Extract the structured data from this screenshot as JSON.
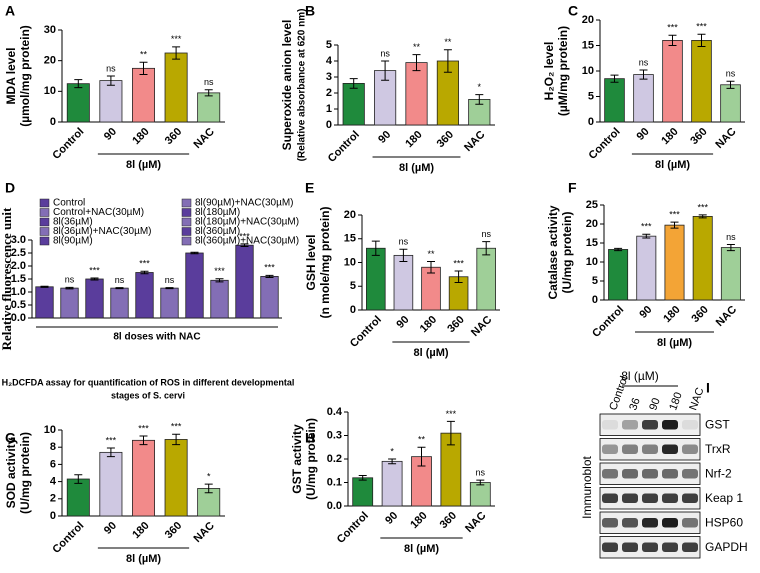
{
  "chart_data": [
    {
      "panel": "A",
      "type": "bar",
      "ylabel": [
        "MDA level",
        "(µmol/mg protein)"
      ],
      "categories": [
        "Control",
        "90",
        "180",
        "360",
        "NAC"
      ],
      "values": [
        12.5,
        13.5,
        17.5,
        22.5,
        9.5
      ],
      "errors": [
        1.3,
        1.5,
        2,
        2,
        1
      ],
      "annotations": [
        null,
        "ns",
        "**",
        "***",
        "ns"
      ],
      "colors": [
        "#1f8a3c",
        "#cfc8e2",
        "#f28a8a",
        "#b9a800",
        "#9fcf98"
      ],
      "ylim": [
        0,
        30
      ],
      "yticks": [
        0,
        10,
        20,
        30
      ],
      "group_label": "8l (µM)"
    },
    {
      "panel": "B",
      "type": "bar",
      "ylabel": [
        "Superoxide anion level",
        "(Relative absorbance at 620 nm)"
      ],
      "categories": [
        "Control",
        "90",
        "180",
        "360",
        "NAC"
      ],
      "values": [
        2.6,
        3.4,
        3.9,
        4.0,
        1.6
      ],
      "errors": [
        0.3,
        0.6,
        0.5,
        0.7,
        0.3
      ],
      "annotations": [
        null,
        "ns",
        "**",
        "**",
        "*"
      ],
      "colors": [
        "#1f8a3c",
        "#cfc8e2",
        "#f28a8a",
        "#b9a800",
        "#9fcf98"
      ],
      "ylim": [
        0,
        5
      ],
      "yticks": [
        0,
        1,
        2,
        3,
        4,
        5
      ],
      "group_label": "8l (µM)"
    },
    {
      "panel": "C",
      "type": "bar",
      "ylabel": [
        "H₂O₂ level",
        "(µM/mg protein)"
      ],
      "categories": [
        "Control",
        "90",
        "180",
        "360",
        "NAC"
      ],
      "values": [
        8.5,
        9.3,
        16,
        16,
        7.3
      ],
      "errors": [
        0.7,
        0.9,
        1,
        1.2,
        0.7
      ],
      "annotations": [
        null,
        "ns",
        "***",
        "***",
        "ns"
      ],
      "colors": [
        "#1f8a3c",
        "#cfc8e2",
        "#f28a8a",
        "#b9a800",
        "#9fcf98"
      ],
      "ylim": [
        0,
        20
      ],
      "yticks": [
        0,
        5,
        10,
        15,
        20
      ],
      "group_label": "8l (µM)"
    },
    {
      "panel": "D",
      "type": "bar",
      "ylabel": [
        "Relative fluorescence unit"
      ],
      "legend": [
        "Control",
        "Control+NAC(30µM)",
        "8l(36µM)",
        "8l(36µM)+NAC(30µM)",
        "8l(90µM)",
        "8l(90µM)+NAC(30µM)",
        "8l(180µM)",
        "8l(180µM)+NAC(30µM)",
        "8l(360µM)",
        "8l(360µM)+NAC(30µM)"
      ],
      "values": [
        1.2,
        1.15,
        1.5,
        1.15,
        1.75,
        1.15,
        2.5,
        1.45,
        2.8,
        1.6
      ],
      "errors": [
        0.02,
        0.03,
        0.04,
        0.02,
        0.05,
        0.02,
        0.03,
        0.06,
        0.05,
        0.04
      ],
      "annotations": [
        null,
        "ns",
        "***",
        "ns",
        "***",
        "ns",
        null,
        "***",
        "***",
        "***"
      ],
      "color": "#5a3d9c",
      "ylim": [
        0,
        3
      ],
      "yticks": [
        {
          "value": 0,
          "label": "0.0"
        },
        {
          "value": 0.5,
          "label": "0.5"
        },
        {
          "value": 1,
          "label": "1.0"
        },
        {
          "value": 1.5,
          "label": "1.5"
        },
        {
          "value": 2,
          "label": "2.0"
        },
        {
          "value": 2.5,
          "label": "2.5"
        },
        {
          "value": 3,
          "label": "3.0"
        }
      ],
      "group_label": "8l doses with NAC",
      "caption": [
        "H₂DCFDA assay for quantification of ROS in different developmental",
        "stages of S. cervi"
      ]
    },
    {
      "panel": "E",
      "type": "bar",
      "ylabel": [
        "GSH level",
        "(n mole/mg protein)"
      ],
      "categories": [
        "Control",
        "90",
        "180",
        "360",
        "NAC"
      ],
      "values": [
        13,
        11.5,
        9,
        7,
        13
      ],
      "errors": [
        1.5,
        1.3,
        1.2,
        1.2,
        1.4
      ],
      "annotations": [
        null,
        "ns",
        "**",
        "***",
        "ns"
      ],
      "colors": [
        "#1f8a3c",
        "#cfc8e2",
        "#f28a8a",
        "#b9a800",
        "#9fcf98"
      ],
      "ylim": [
        0,
        20
      ],
      "yticks": [
        0,
        5,
        10,
        15,
        20
      ],
      "group_label": "8l (µM)"
    },
    {
      "panel": "F",
      "type": "bar",
      "ylabel": [
        "Catalase activity",
        "(U/mg protein)"
      ],
      "categories": [
        "Control",
        "90",
        "180",
        "360",
        "NAC"
      ],
      "values": [
        13.3,
        16.8,
        19.7,
        22,
        13.8
      ],
      "errors": [
        0.3,
        0.5,
        0.8,
        0.4,
        0.8
      ],
      "annotations": [
        null,
        "***",
        "***",
        "***",
        "ns"
      ],
      "colors": [
        "#1f8a3c",
        "#cfc8e2",
        "#f3a436",
        "#b9a800",
        "#9fcf98"
      ],
      "ylim": [
        0,
        25
      ],
      "yticks": [
        0,
        5,
        10,
        15,
        20,
        25
      ],
      "group_label": "8l (µM)"
    },
    {
      "panel": "G",
      "type": "bar",
      "ylabel": [
        "SOD activity",
        "(U/mg protein)"
      ],
      "categories": [
        "Control",
        "90",
        "180",
        "360",
        "NAC"
      ],
      "values": [
        4.3,
        7.4,
        8.8,
        8.9,
        3.2
      ],
      "errors": [
        0.5,
        0.5,
        0.5,
        0.6,
        0.5
      ],
      "annotations": [
        null,
        "***",
        "***",
        "***",
        "*"
      ],
      "colors": [
        "#1f8a3c",
        "#cfc8e2",
        "#f28a8a",
        "#b9a800",
        "#9fcf98"
      ],
      "ylim": [
        0,
        10
      ],
      "yticks": [
        0,
        2,
        4,
        6,
        8,
        10
      ],
      "group_label": "8l (µM)"
    },
    {
      "panel": "H",
      "type": "bar",
      "ylabel": [
        "GST activity",
        "(U/mg protein)"
      ],
      "categories": [
        "Control",
        "90",
        "180",
        "360",
        "NAC"
      ],
      "values": [
        0.12,
        0.19,
        0.21,
        0.31,
        0.1
      ],
      "errors": [
        0.01,
        0.01,
        0.04,
        0.05,
        0.01
      ],
      "annotations": [
        null,
        "*",
        "**",
        "***",
        "ns"
      ],
      "colors": [
        "#1f8a3c",
        "#cfc8e2",
        "#f28a8a",
        "#b9a800",
        "#9fcf98"
      ],
      "ylim": [
        0,
        0.4
      ],
      "yticks": [
        {
          "value": 0,
          "label": "0.0"
        },
        {
          "value": 0.1,
          "label": "0.1"
        },
        {
          "value": 0.2,
          "label": "0.2"
        },
        {
          "value": 0.3,
          "label": "0.3"
        },
        {
          "value": 0.4,
          "label": "0.4"
        }
      ],
      "group_label": "8l (µM)"
    }
  ],
  "immunoblot": {
    "panel": "I",
    "header": "8l (µM)",
    "lanes": [
      "Control",
      "36",
      "90",
      "180",
      "NAC"
    ],
    "rows": [
      "GST",
      "TrxR",
      "Nrf-2",
      "Keap 1",
      "HSP60",
      "GAPDH"
    ],
    "side_label": "Immunoblot"
  }
}
